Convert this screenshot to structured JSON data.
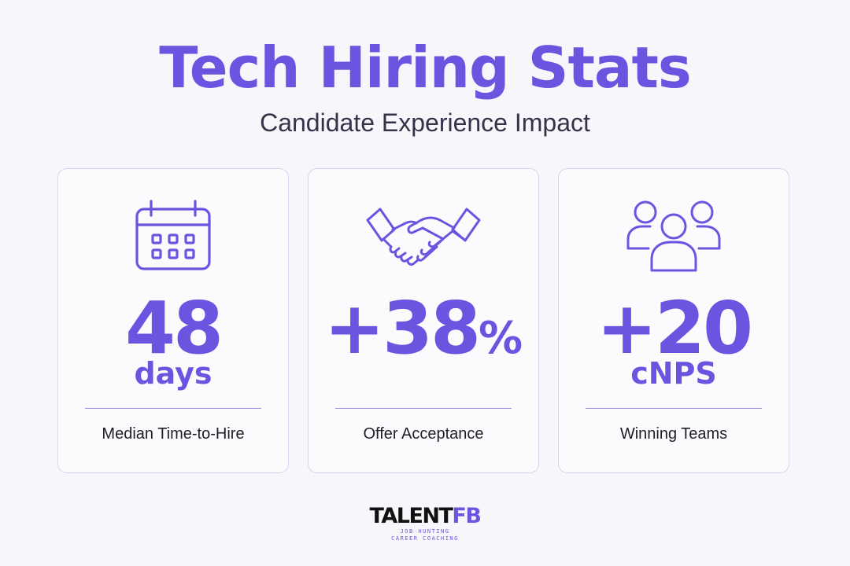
{
  "header": {
    "title": "Tech Hiring Stats",
    "subtitle": "Candidate Experience Impact"
  },
  "stats": [
    {
      "icon": "calendar-icon",
      "value": "48",
      "unit": "days",
      "label": "Median Time-to-Hire"
    },
    {
      "icon": "handshake-icon",
      "value": "+38",
      "suffix": "%",
      "unit": "",
      "label": "Offer Acceptance"
    },
    {
      "icon": "team-icon",
      "value": "+20",
      "unit": "cNPS",
      "label": "Winning Teams"
    }
  ],
  "logo": {
    "brand_main": "TALENT",
    "brand_accent": "FB",
    "tagline_1": "JOB HUNTING",
    "tagline_2": "CAREER COACHING"
  },
  "colors": {
    "accent": "#6c54e0",
    "background": "#f7f7fb",
    "card_border": "#d8d3f2",
    "text_dark": "#1e1e28"
  }
}
